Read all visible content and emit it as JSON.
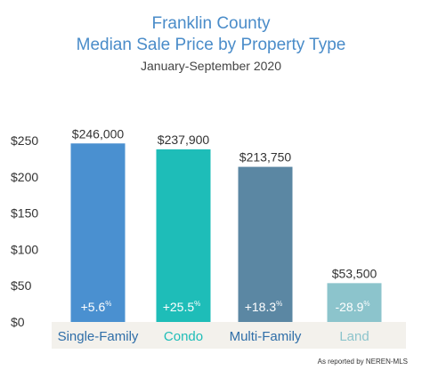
{
  "chart_data": {
    "type": "bar",
    "title": "Franklin County",
    "subtitle": "Median Sale Price by Property Type",
    "period": "January-September 2020",
    "categories": [
      "Single-Family",
      "Condo",
      "Multi-Family",
      "Land"
    ],
    "values": [
      246000,
      237900,
      213750,
      53500
    ],
    "value_labels": [
      "$246,000",
      "$237,900",
      "$213,750",
      "$53,500"
    ],
    "change_labels": [
      "+5.6",
      "+25.5",
      "+18.3",
      "-28.9"
    ],
    "change_unit": "%",
    "bar_colors": [
      "#4a90d0",
      "#1ebdb8",
      "#5b87a3",
      "#8cc4cc"
    ],
    "category_colors": [
      "#2f6ea8",
      "#1ebdb8",
      "#2f6ea8",
      "#8cc4cc"
    ],
    "yticks": [
      "$0",
      "$50",
      "$100",
      "$150",
      "$200",
      "$250"
    ],
    "ylim": [
      0,
      250000
    ],
    "xlabel": "",
    "ylabel": "",
    "grid": false,
    "legend": "none",
    "note": "As reported by NEREN-MLS"
  }
}
